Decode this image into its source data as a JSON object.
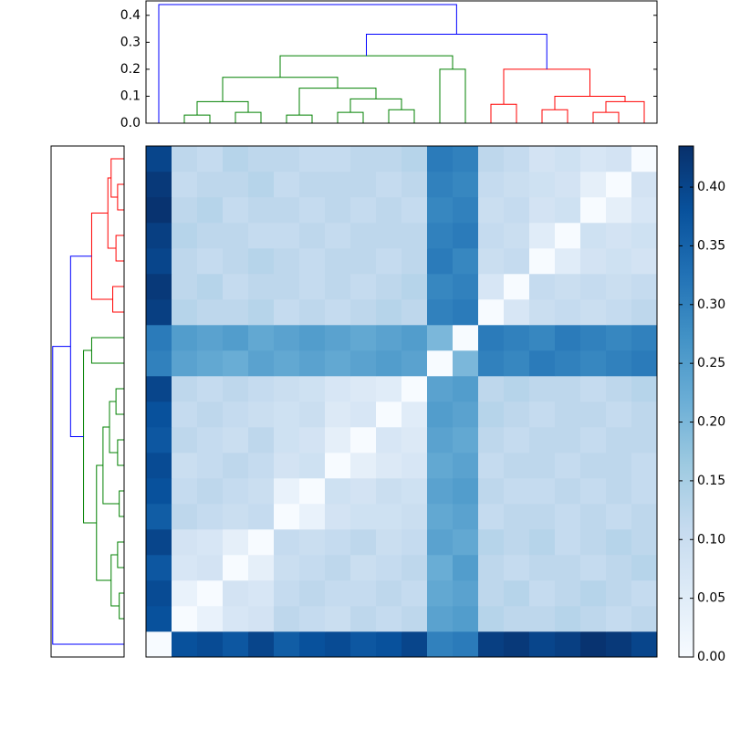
{
  "chart_data": {
    "type": "dendrogram-heatmap",
    "colormap": [
      "#f7fbff",
      "#deebf7",
      "#c6dbef",
      "#9ecae1",
      "#6baed6",
      "#4292c6",
      "#2171b5",
      "#08519c",
      "#08306b"
    ],
    "clim": [
      0,
      0.435
    ],
    "cticks": [
      {
        "value": 0,
        "label": "0.00"
      },
      {
        "value": 0.05,
        "label": "0.05"
      },
      {
        "value": 0.1,
        "label": "0.10"
      },
      {
        "value": 0.15,
        "label": "0.15"
      },
      {
        "value": 0.2,
        "label": "0.20"
      },
      {
        "value": 0.25,
        "label": "0.25"
      },
      {
        "value": 0.3,
        "label": "0.30"
      },
      {
        "value": 0.35,
        "label": "0.35"
      },
      {
        "value": 0.4,
        "label": "0.40"
      }
    ],
    "ylim": [
      0,
      0.45
    ],
    "yticks": [
      {
        "value": 0,
        "label": "0.0"
      },
      0.1,
      0.2,
      0.3,
      0.4
    ],
    "links": [
      {
        "x": [
          1,
          1,
          2,
          2
        ],
        "y": [
          0,
          0.03,
          0.03,
          0
        ],
        "color": "#008000"
      },
      {
        "x": [
          3,
          3,
          4,
          4
        ],
        "y": [
          0,
          0.04,
          0.04,
          0
        ],
        "color": "#008000"
      },
      {
        "x": [
          1.5,
          1.5,
          3.5,
          3.5
        ],
        "y": [
          0.03,
          0.08,
          0.08,
          0.04
        ],
        "color": "#008000"
      },
      {
        "x": [
          5,
          5,
          6,
          6
        ],
        "y": [
          0,
          0.03,
          0.03,
          0
        ],
        "color": "#008000"
      },
      {
        "x": [
          7,
          7,
          8,
          8
        ],
        "y": [
          0,
          0.04,
          0.04,
          0
        ],
        "color": "#008000"
      },
      {
        "x": [
          9,
          9,
          10,
          10
        ],
        "y": [
          0,
          0.05,
          0.05,
          0
        ],
        "color": "#008000"
      },
      {
        "x": [
          7.5,
          7.5,
          9.5,
          9.5
        ],
        "y": [
          0.04,
          0.09,
          0.09,
          0.05
        ],
        "color": "#008000"
      },
      {
        "x": [
          5.5,
          5.5,
          8.5,
          8.5
        ],
        "y": [
          0.03,
          0.13,
          0.13,
          0.09
        ],
        "color": "#008000"
      },
      {
        "x": [
          2.5,
          2.5,
          7,
          7
        ],
        "y": [
          0.08,
          0.17,
          0.17,
          0.13
        ],
        "color": "#008000"
      },
      {
        "x": [
          11,
          11,
          12,
          12
        ],
        "y": [
          0,
          0.2,
          0.2,
          0
        ],
        "color": "#008000"
      },
      {
        "x": [
          4.75,
          4.75,
          11.5,
          11.5
        ],
        "y": [
          0.17,
          0.25,
          0.25,
          0.2
        ],
        "color": "#008000"
      },
      {
        "x": [
          13,
          13,
          14,
          14
        ],
        "y": [
          0,
          0.07,
          0.07,
          0
        ],
        "color": "#ff0000"
      },
      {
        "x": [
          15,
          15,
          16,
          16
        ],
        "y": [
          0,
          0.05,
          0.05,
          0
        ],
        "color": "#ff0000"
      },
      {
        "x": [
          17,
          17,
          18,
          18
        ],
        "y": [
          0,
          0.04,
          0.04,
          0
        ],
        "color": "#ff0000"
      },
      {
        "x": [
          17.5,
          17.5,
          19,
          19
        ],
        "y": [
          0.04,
          0.08,
          0.08,
          0
        ],
        "color": "#ff0000"
      },
      {
        "x": [
          15.5,
          15.5,
          18.25,
          18.25
        ],
        "y": [
          0.05,
          0.1,
          0.1,
          0.08
        ],
        "color": "#ff0000"
      },
      {
        "x": [
          13.5,
          13.5,
          16.875,
          16.875
        ],
        "y": [
          0.07,
          0.2,
          0.2,
          0.1
        ],
        "color": "#ff0000"
      },
      {
        "x": [
          8.125,
          8.125,
          15.1875,
          15.1875
        ],
        "y": [
          0.25,
          0.33,
          0.33,
          0.2
        ],
        "color": "#0000ff"
      },
      {
        "x": [
          0,
          0,
          11.65625,
          11.65625
        ],
        "y": [
          0,
          0.44,
          0.44,
          0.33
        ],
        "color": "#0000ff"
      }
    ],
    "matrix": [
      [
        0,
        0.38,
        0.39,
        0.37,
        0.4,
        0.36,
        0.38,
        0.39,
        0.37,
        0.38,
        0.4,
        0.3,
        0.31,
        0.41,
        0.42,
        0.4,
        0.41,
        0.43,
        0.42,
        0.4
      ],
      [
        0.38,
        0,
        0.03,
        0.07,
        0.08,
        0.12,
        0.11,
        0.1,
        0.12,
        0.11,
        0.12,
        0.24,
        0.25,
        0.13,
        0.12,
        0.12,
        0.13,
        0.12,
        0.11,
        0.12
      ],
      [
        0.39,
        0.03,
        0,
        0.08,
        0.07,
        0.11,
        0.12,
        0.11,
        0.11,
        0.12,
        0.11,
        0.23,
        0.24,
        0.12,
        0.13,
        0.11,
        0.12,
        0.13,
        0.12,
        0.11
      ],
      [
        0.37,
        0.07,
        0.08,
        0,
        0.04,
        0.1,
        0.11,
        0.12,
        0.1,
        0.11,
        0.12,
        0.22,
        0.25,
        0.12,
        0.11,
        0.12,
        0.12,
        0.11,
        0.12,
        0.13
      ],
      [
        0.4,
        0.08,
        0.07,
        0.04,
        0,
        0.11,
        0.1,
        0.11,
        0.12,
        0.1,
        0.11,
        0.24,
        0.23,
        0.13,
        0.12,
        0.13,
        0.11,
        0.12,
        0.13,
        0.12
      ],
      [
        0.36,
        0.12,
        0.11,
        0.1,
        0.11,
        0,
        0.03,
        0.08,
        0.09,
        0.09,
        0.1,
        0.23,
        0.24,
        0.11,
        0.12,
        0.12,
        0.11,
        0.12,
        0.11,
        0.12
      ],
      [
        0.38,
        0.11,
        0.12,
        0.11,
        0.1,
        0.03,
        0,
        0.09,
        0.08,
        0.1,
        0.09,
        0.24,
        0.25,
        0.12,
        0.11,
        0.11,
        0.12,
        0.11,
        0.12,
        0.11
      ],
      [
        0.39,
        0.1,
        0.11,
        0.12,
        0.11,
        0.08,
        0.09,
        0,
        0.04,
        0.06,
        0.07,
        0.23,
        0.24,
        0.11,
        0.12,
        0.12,
        0.11,
        0.12,
        0.12,
        0.11
      ],
      [
        0.37,
        0.12,
        0.11,
        0.1,
        0.12,
        0.09,
        0.08,
        0.04,
        0,
        0.07,
        0.06,
        0.24,
        0.23,
        0.12,
        0.11,
        0.12,
        0.12,
        0.11,
        0.12,
        0.12
      ],
      [
        0.38,
        0.11,
        0.12,
        0.11,
        0.1,
        0.09,
        0.1,
        0.06,
        0.07,
        0,
        0.05,
        0.25,
        0.24,
        0.13,
        0.12,
        0.11,
        0.12,
        0.12,
        0.11,
        0.12
      ],
      [
        0.4,
        0.12,
        0.11,
        0.12,
        0.11,
        0.1,
        0.09,
        0.07,
        0.06,
        0.05,
        0,
        0.24,
        0.25,
        0.12,
        0.13,
        0.12,
        0.12,
        0.11,
        0.12,
        0.13
      ],
      [
        0.3,
        0.24,
        0.23,
        0.22,
        0.24,
        0.23,
        0.24,
        0.23,
        0.24,
        0.25,
        0.24,
        0,
        0.2,
        0.3,
        0.29,
        0.31,
        0.3,
        0.29,
        0.3,
        0.31
      ],
      [
        0.31,
        0.25,
        0.24,
        0.25,
        0.23,
        0.24,
        0.25,
        0.24,
        0.23,
        0.24,
        0.25,
        0.2,
        0,
        0.31,
        0.3,
        0.29,
        0.31,
        0.3,
        0.29,
        0.3
      ],
      [
        0.41,
        0.13,
        0.12,
        0.12,
        0.13,
        0.11,
        0.12,
        0.11,
        0.12,
        0.13,
        0.12,
        0.3,
        0.31,
        0,
        0.07,
        0.1,
        0.11,
        0.1,
        0.11,
        0.12
      ],
      [
        0.42,
        0.12,
        0.13,
        0.11,
        0.12,
        0.12,
        0.11,
        0.12,
        0.11,
        0.12,
        0.13,
        0.29,
        0.3,
        0.07,
        0,
        0.11,
        0.1,
        0.11,
        0.1,
        0.11
      ],
      [
        0.4,
        0.12,
        0.11,
        0.12,
        0.13,
        0.12,
        0.11,
        0.12,
        0.12,
        0.11,
        0.12,
        0.31,
        0.29,
        0.1,
        0.11,
        0,
        0.05,
        0.08,
        0.09,
        0.08
      ],
      [
        0.41,
        0.13,
        0.12,
        0.12,
        0.11,
        0.11,
        0.12,
        0.11,
        0.12,
        0.12,
        0.12,
        0.3,
        0.31,
        0.11,
        0.1,
        0.05,
        0,
        0.09,
        0.08,
        0.09
      ],
      [
        0.43,
        0.12,
        0.13,
        0.11,
        0.12,
        0.12,
        0.11,
        0.12,
        0.11,
        0.12,
        0.11,
        0.29,
        0.3,
        0.1,
        0.11,
        0.08,
        0.09,
        0,
        0.04,
        0.07
      ],
      [
        0.42,
        0.11,
        0.12,
        0.12,
        0.13,
        0.11,
        0.12,
        0.12,
        0.12,
        0.11,
        0.12,
        0.3,
        0.29,
        0.11,
        0.1,
        0.09,
        0.08,
        0.04,
        0,
        0.08
      ],
      [
        0.4,
        0.12,
        0.11,
        0.13,
        0.12,
        0.12,
        0.11,
        0.11,
        0.12,
        0.12,
        0.13,
        0.31,
        0.3,
        0.12,
        0.11,
        0.08,
        0.09,
        0.07,
        0.08,
        0
      ]
    ]
  }
}
